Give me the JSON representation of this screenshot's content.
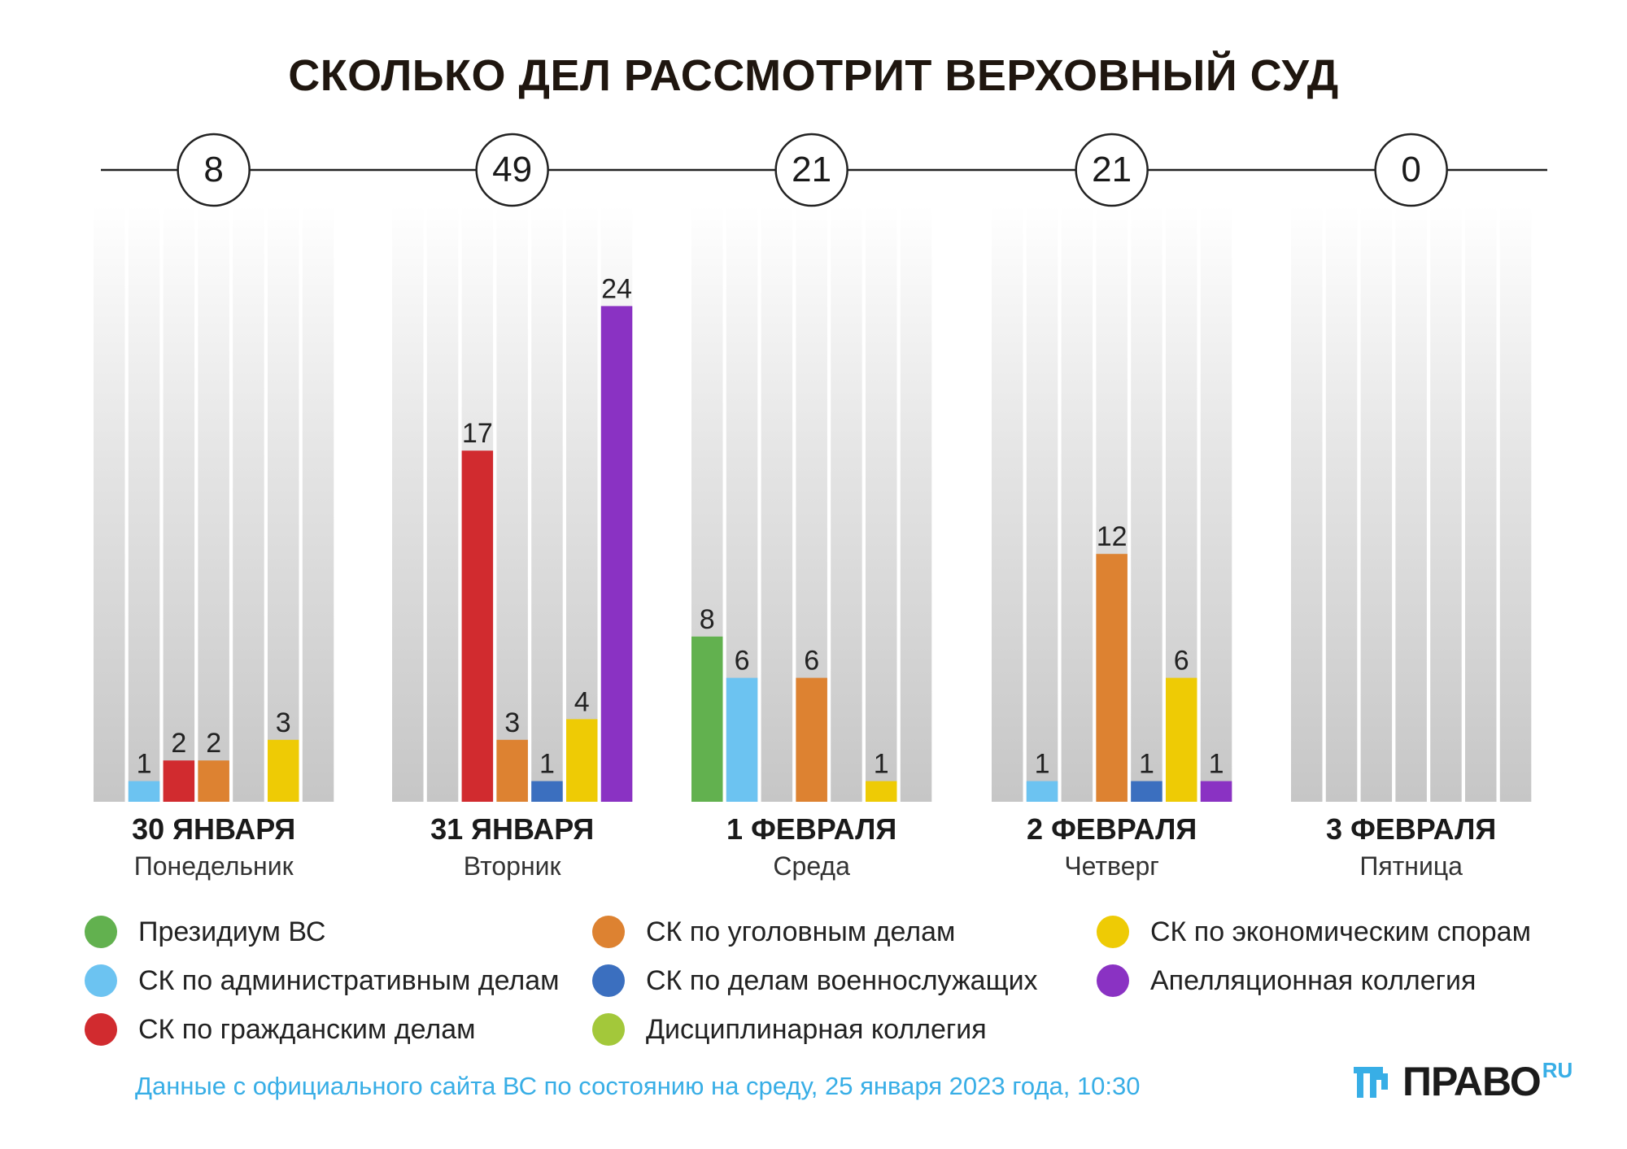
{
  "title": "СКОЛЬКО ДЕЛ РАССМОТРИТ ВЕРХОВНЫЙ СУД",
  "chart_data": {
    "type": "bar",
    "title": "СКОЛЬКО ДЕЛ РАССМОТРИТ ВЕРХОВНЫЙ СУД",
    "ylim": [
      0,
      29
    ],
    "series": [
      {
        "key": "presidium",
        "name": "Президиум ВС",
        "color": "#62b14f"
      },
      {
        "key": "admin",
        "name": "СК по административным делам",
        "color": "#6cc3f1"
      },
      {
        "key": "civil",
        "name": "СК по гражданским делам",
        "color": "#d12b2f"
      },
      {
        "key": "criminal",
        "name": "СК по уголовным делам",
        "color": "#dd8231"
      },
      {
        "key": "military",
        "name": "СК по делам военнослужащих",
        "color": "#3b6fbf"
      },
      {
        "key": "economic",
        "name": "СК по экономическим спорам",
        "color": "#eecb05"
      },
      {
        "key": "appeal",
        "name": "Апелляционная коллегия",
        "color": "#8a32c3"
      },
      {
        "key": "disciplinary",
        "name": "Дисциплинарная коллегия",
        "color": "#a3c83a"
      }
    ],
    "days": [
      {
        "date": "30 ЯНВАРЯ",
        "weekday": "Понедельник",
        "total": "8",
        "values": [
          null,
          1,
          2,
          2,
          null,
          3,
          null,
          null
        ]
      },
      {
        "date": "31 ЯНВАРЯ",
        "weekday": "Вторник",
        "total": "49",
        "values": [
          null,
          null,
          17,
          3,
          1,
          4,
          24,
          null
        ]
      },
      {
        "date": "1 ФЕВРАЛЯ",
        "weekday": "Среда",
        "total": "21",
        "values": [
          8,
          6,
          null,
          6,
          null,
          1,
          null,
          null
        ]
      },
      {
        "date": "2 ФЕВРАЛЯ",
        "weekday": "Четверг",
        "total": "21",
        "values": [
          null,
          1,
          null,
          12,
          1,
          6,
          1,
          null
        ]
      },
      {
        "date": "3 ФЕВРАЛЯ",
        "weekday": "Пятница",
        "total": "0",
        "values": [
          null,
          null,
          null,
          null,
          null,
          null,
          null,
          null
        ]
      }
    ]
  },
  "source_note": "Данные с официального сайта ВС по состоянию на среду, 25 января 2023 года, 10:30",
  "logo": {
    "text": "ПРАВО",
    "suffix": "RU"
  }
}
